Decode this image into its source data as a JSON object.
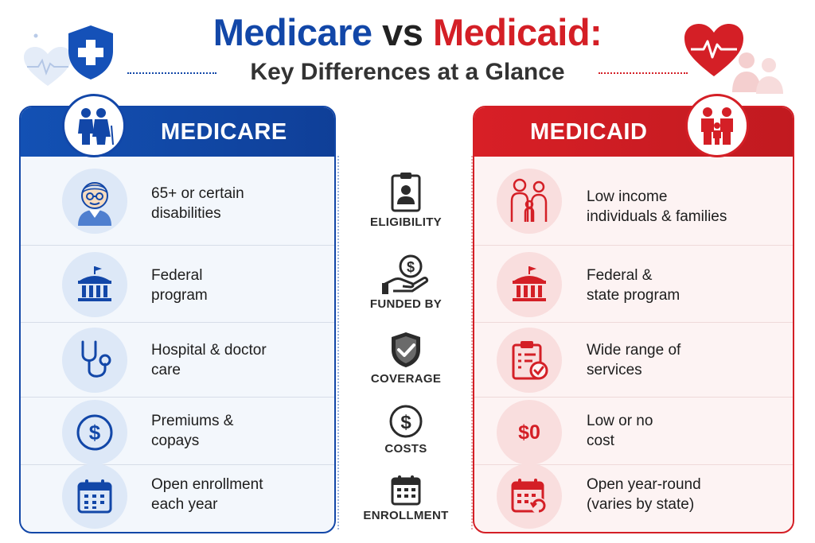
{
  "header": {
    "title_part1": "Medicare",
    "title_vs": "vs",
    "title_part2": "Medicaid:",
    "subtitle": "Key Differences at a Glance"
  },
  "colors": {
    "medicare": "#1247a8",
    "medicaid": "#d41f26",
    "text": "#222222"
  },
  "medicare": {
    "heading": "MEDICARE",
    "rows": [
      {
        "icon": "senior-man-icon",
        "line1": "65+ or certain",
        "line2": "disabilities"
      },
      {
        "icon": "government-building-icon",
        "line1": "Federal",
        "line2": "program"
      },
      {
        "icon": "stethoscope-icon",
        "line1": "Hospital & doctor",
        "line2": "care"
      },
      {
        "icon": "dollar-circle-icon",
        "line1": "Premiums &",
        "line2": "copays"
      },
      {
        "icon": "calendar-icon",
        "line1": "Open enrollment",
        "line2": "each year"
      }
    ]
  },
  "categories": [
    {
      "icon": "id-badge-icon",
      "label": "ELIGIBILITY"
    },
    {
      "icon": "hand-coin-icon",
      "label": "FUNDED BY"
    },
    {
      "icon": "shield-check-icon",
      "label": "COVERAGE"
    },
    {
      "icon": "dollar-circle-icon",
      "label": "COSTS"
    },
    {
      "icon": "calendar-icon",
      "label": "ENROLLMENT"
    }
  ],
  "medicaid": {
    "heading": "MEDICAID",
    "rows": [
      {
        "icon": "family-icon",
        "line1": "Low income",
        "line2": "individuals & families"
      },
      {
        "icon": "government-building-icon",
        "line1": "Federal &",
        "line2": "state program"
      },
      {
        "icon": "clipboard-check-icon",
        "line1": "Wide range of",
        "line2": "services"
      },
      {
        "icon": "zero-dollar-icon",
        "icon_text": "$0",
        "line1": "Low or no",
        "line2": "cost"
      },
      {
        "icon": "calendar-refresh-icon",
        "line1": "Open year-round",
        "line2": "(varies by state)"
      }
    ]
  }
}
